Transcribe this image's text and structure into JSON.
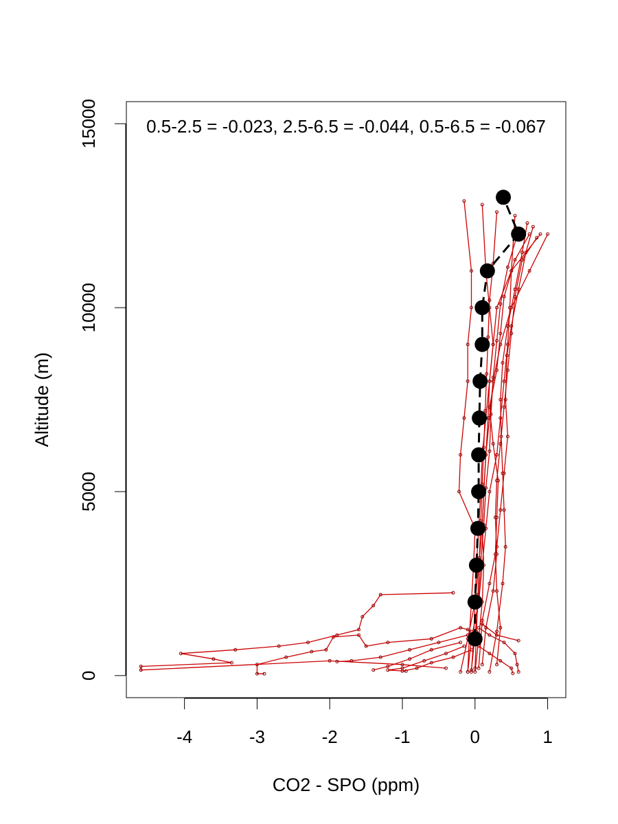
{
  "chart_data": {
    "type": "line",
    "title": "",
    "annotation": "0.5-2.5 = -0.023, 2.5-6.5 = -0.044, 0.5-6.5 = -0.067",
    "xlabel": "CO2 - SPO (ppm)",
    "ylabel": "Altitude (m)",
    "xlim": [
      -4.8,
      1.25
    ],
    "ylim": [
      -600,
      15600
    ],
    "x_ticks": [
      -4,
      -3,
      -2,
      -1,
      0,
      1
    ],
    "x_tick_labels": [
      "-4",
      "-3",
      "-2",
      "-1",
      "0",
      "1"
    ],
    "y_ticks": [
      0,
      5000,
      10000,
      15000
    ],
    "y_tick_labels": [
      "0",
      "5000",
      "10000",
      "15000"
    ],
    "grid": false,
    "colors": {
      "profiles": "#cc0000",
      "profile_points": "#8b0000",
      "mean": "#000000"
    },
    "series": [
      {
        "style": "black dashed line with large filled circles",
        "x": [
          0.0,
          0.0,
          0.02,
          0.04,
          0.05,
          0.05,
          0.06,
          0.07,
          0.1,
          0.1,
          0.17,
          0.6,
          0.39
        ],
        "y": [
          1000,
          2000,
          3000,
          4000,
          5000,
          6000,
          7000,
          8000,
          9000,
          10000,
          11000,
          12000,
          13000
        ]
      }
    ],
    "profile_traces": [
      {
        "x": [
          -0.05,
          -0.1,
          -0.2,
          -0.6,
          -1.2,
          -1.5,
          -1.6,
          -1.95,
          -2.05,
          -2.25,
          -2.6,
          -3.0,
          -3.0,
          -2.9
        ],
        "y": [
          1200,
          1250,
          1300,
          1000,
          900,
          800,
          1100,
          1050,
          700,
          650,
          500,
          300,
          50,
          50
        ]
      },
      {
        "x": [
          -0.3,
          -1.3,
          -1.4,
          -1.55,
          -1.6,
          -1.9,
          -2.3,
          -2.7,
          -3.3,
          -4.05,
          -3.6,
          -3.35,
          -4.6,
          -4.6,
          -2.0,
          -1.0,
          -0.4
        ],
        "y": [
          2250,
          2200,
          1900,
          1600,
          1250,
          1100,
          900,
          800,
          700,
          600,
          450,
          350,
          250,
          150,
          400,
          300,
          200
        ]
      },
      {
        "x": [
          -0.1,
          -0.5,
          -0.9,
          -1.3,
          -1.7,
          -1.9
        ],
        "y": [
          1100,
          900,
          700,
          500,
          400,
          380
        ]
      },
      {
        "x": [
          -0.2,
          -0.6,
          -0.9,
          -1.2,
          -1.4
        ],
        "y": [
          900,
          700,
          450,
          250,
          150
        ]
      },
      {
        "x": [
          -0.15,
          -0.4,
          -0.7,
          -1.0,
          -1.2,
          -0.95
        ],
        "y": [
          800,
          600,
          400,
          200,
          150,
          120
        ]
      },
      {
        "x": [
          -0.05,
          -0.3,
          -0.6,
          -0.8,
          -1.0
        ],
        "y": [
          700,
          500,
          350,
          200,
          120
        ]
      },
      {
        "x": [
          0.05,
          0.2,
          0.4,
          0.55,
          0.58,
          0.6
        ],
        "y": [
          1300,
          1100,
          900,
          600,
          300,
          100
        ]
      },
      {
        "x": [
          0.1,
          0.3,
          0.6
        ],
        "y": [
          1400,
          1100,
          950
        ]
      },
      {
        "x": [
          0.05,
          0.2,
          0.35,
          0.5,
          0.52
        ],
        "y": [
          800,
          600,
          400,
          200,
          60
        ]
      },
      {
        "x": [
          -0.2,
          -0.1,
          0.0,
          0.05,
          0.1,
          0.12,
          0.15,
          0.2,
          0.25,
          0.35,
          0.5,
          0.75,
          1.0
        ],
        "y": [
          100,
          1000,
          2000,
          3000,
          4000,
          5000,
          6000,
          7000,
          8000,
          9000,
          10000,
          11000,
          12000
        ]
      },
      {
        "x": [
          -0.1,
          -0.05,
          0.05,
          0.1,
          0.15,
          0.2,
          0.3,
          0.35,
          0.4,
          0.45,
          0.48,
          0.5,
          0.55
        ],
        "y": [
          100,
          1000,
          2000,
          3000,
          4000,
          5000,
          6000,
          7000,
          8000,
          9000,
          10000,
          11000,
          12500
        ]
      },
      {
        "x": [
          0.05,
          0.1,
          0.2,
          0.3,
          0.35,
          0.4,
          0.45,
          0.42,
          0.44,
          0.5,
          0.6,
          0.7,
          0.8
        ],
        "y": [
          200,
          1500,
          2500,
          3500,
          4500,
          5500,
          6500,
          7500,
          8700,
          9500,
          10500,
          11500,
          12200
        ]
      },
      {
        "x": [
          -0.05,
          -0.02,
          0.0,
          0.02,
          0.05,
          0.08,
          0.1,
          0.15,
          0.2,
          0.25,
          0.3,
          0.5,
          0.9
        ],
        "y": [
          100,
          1000,
          2000,
          3000,
          4000,
          5000,
          6000,
          7000,
          8000,
          9000,
          10000,
          11000,
          12000
        ]
      },
      {
        "x": [
          0.0,
          0.05,
          0.1,
          0.12,
          0.1,
          0.12,
          0.15,
          0.18,
          0.2,
          0.25,
          0.2,
          0.15,
          0.1
        ],
        "y": [
          100,
          1000,
          2000,
          3000,
          4000,
          5000,
          6000,
          7000,
          8000,
          9000,
          10000,
          11000,
          12800
        ]
      },
      {
        "x": [
          -0.1,
          -0.08,
          -0.05,
          -0.02,
          0.0,
          -0.22,
          -0.2,
          -0.15,
          -0.1,
          -0.1,
          -0.05,
          -0.05,
          -0.15
        ],
        "y": [
          100,
          1000,
          2000,
          3000,
          4000,
          5000,
          6000,
          7000,
          8000,
          9000,
          10000,
          11000,
          12900
        ]
      },
      {
        "x": [
          0.2,
          0.3,
          0.38,
          0.42,
          0.4,
          0.38,
          0.36,
          0.35,
          0.38,
          0.45,
          0.55,
          0.65,
          0.72
        ],
        "y": [
          100,
          1200,
          2500,
          3500,
          4500,
          5500,
          6500,
          7500,
          8500,
          9500,
          10500,
          11500,
          12300
        ]
      },
      {
        "x": [
          0.1,
          0.15,
          0.25,
          0.3,
          0.28,
          0.3,
          0.35,
          0.4,
          0.45,
          0.5,
          0.55,
          0.65,
          0.85
        ],
        "y": [
          300,
          1300,
          2300,
          3300,
          4300,
          5300,
          6300,
          7300,
          8300,
          9300,
          10300,
          11300,
          11900
        ]
      },
      {
        "x": [
          -0.05,
          0.0,
          0.05,
          0.08,
          0.12,
          0.15,
          0.2,
          0.22,
          0.25,
          0.3,
          0.35,
          0.45,
          0.6
        ],
        "y": [
          150,
          1100,
          2100,
          3100,
          4100,
          5100,
          6100,
          7100,
          8100,
          9100,
          10100,
          11100,
          12100
        ]
      },
      {
        "x": [
          0.0,
          0.02,
          0.04,
          0.06,
          0.08,
          0.1,
          0.12,
          0.14,
          0.16,
          0.18,
          0.2,
          0.25,
          0.3
        ],
        "y": [
          200,
          1200,
          2200,
          3200,
          4200,
          5200,
          6200,
          7200,
          8200,
          9200,
          10200,
          11200,
          12600
        ]
      },
      {
        "x": [
          0.3,
          0.35,
          0.3,
          0.28,
          0.3,
          0.32,
          0.25,
          0.2,
          0.3,
          0.35,
          0.4,
          0.55,
          0.75
        ],
        "y": [
          300,
          1300,
          2300,
          3300,
          4300,
          5300,
          6300,
          7300,
          8300,
          9300,
          10300,
          11300,
          12000
        ]
      }
    ]
  }
}
